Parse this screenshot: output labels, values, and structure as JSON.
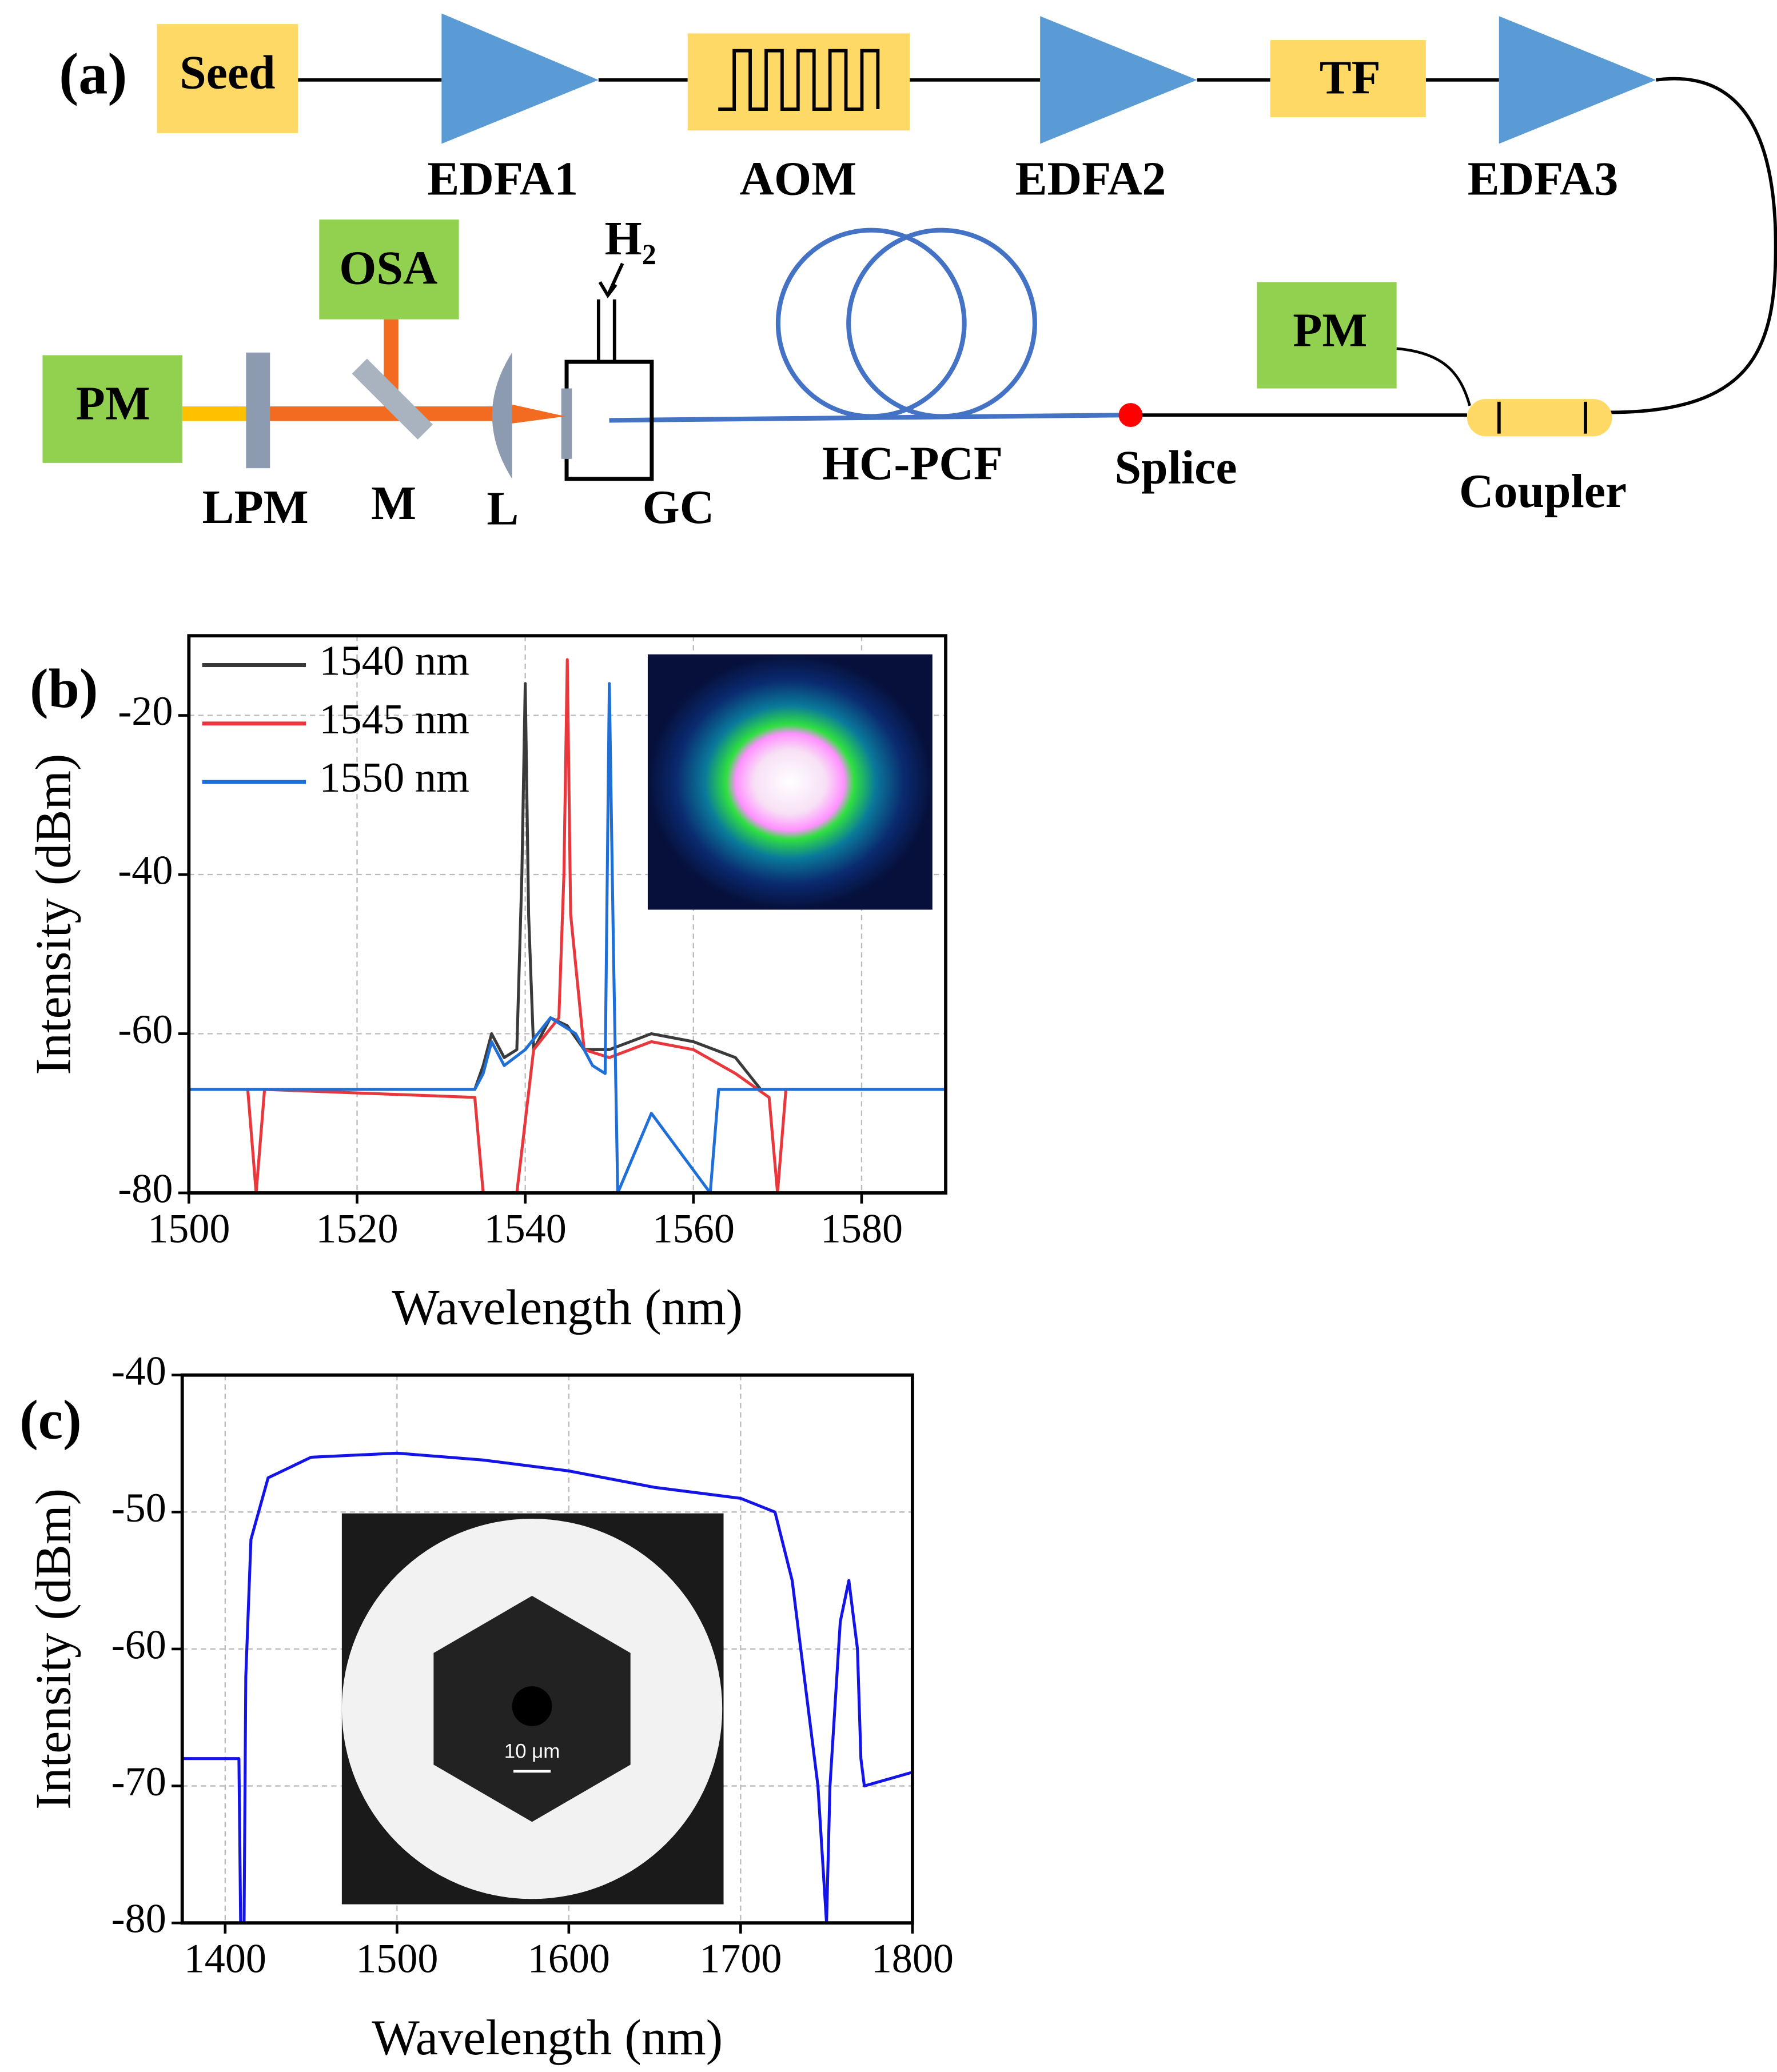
{
  "diagram": {
    "panel_label": "(a)",
    "components": {
      "seed": "Seed",
      "edfa1": "EDFA1",
      "aom": "AOM",
      "edfa2": "EDFA2",
      "tf": "TF",
      "edfa3": "EDFA3",
      "osa": "OSA",
      "gas": "H₂",
      "pm_left": "PM",
      "lpm": "LPM",
      "mirror": "M",
      "lens": "L",
      "gc": "GC",
      "fiber": "HC-PCF",
      "splice": "Splice",
      "pm_right": "PM",
      "coupler": "Coupler"
    }
  },
  "chart_data": [
    {
      "type": "line",
      "panel_label": "(b)",
      "xlabel": "Wavelength (nm)",
      "ylabel": "Intensity (dBm)",
      "xlim": [
        1500,
        1590
      ],
      "ylim": [
        -80,
        -10
      ],
      "xticks": [
        1500,
        1520,
        1540,
        1560,
        1580
      ],
      "yticks": [
        -80,
        -60,
        -40,
        -20
      ],
      "grid": true,
      "legend": "upper left",
      "series": [
        {
          "name": "1540 nm",
          "color": "#3a3a3a",
          "x": [
            1500,
            1534,
            1535,
            1536,
            1537.5,
            1539,
            1539.6,
            1540,
            1540.4,
            1541,
            1543,
            1545,
            1547,
            1550,
            1555,
            1560,
            1565,
            1568,
            1590
          ],
          "values": [
            -67,
            -67,
            -64,
            -60,
            -63,
            -62,
            -40,
            -16,
            -45,
            -62,
            -58,
            -59,
            -62,
            -62,
            -60,
            -61,
            -63,
            -67,
            -67
          ]
        },
        {
          "name": "1545 nm",
          "color": "#e8383d",
          "x": [
            1500,
            1507,
            1508,
            1509,
            1534,
            1535,
            1539,
            1541,
            1544,
            1544.6,
            1545,
            1545.4,
            1547,
            1550,
            1555,
            1560,
            1565,
            1569,
            1570,
            1571,
            1590
          ],
          "values": [
            -67,
            -67,
            -80,
            -67,
            -68,
            -80,
            -80,
            -62,
            -58,
            -40,
            -13,
            -45,
            -62,
            -63,
            -61,
            -62,
            -65,
            -68,
            -80,
            -67,
            -67
          ]
        },
        {
          "name": "1550 nm",
          "color": "#1f6fd6",
          "x": [
            1500,
            1534,
            1535,
            1536,
            1537.5,
            1540,
            1543,
            1546,
            1548,
            1549.5,
            1550,
            1550.5,
            1551,
            1555,
            1562,
            1563,
            1590
          ],
          "values": [
            -67,
            -67,
            -65,
            -61,
            -64,
            -62,
            -58,
            -60,
            -64,
            -65,
            -16,
            -50,
            -80,
            -70,
            -80,
            -67,
            -67
          ]
        }
      ]
    },
    {
      "type": "line",
      "panel_label": "(c)",
      "xlabel": "Wavelength (nm)",
      "ylabel": "Intensity (dBm)",
      "inset_label": "10 μm",
      "xlim": [
        1375,
        1800
      ],
      "ylim": [
        -80,
        -40
      ],
      "xticks": [
        1400,
        1500,
        1600,
        1700,
        1800
      ],
      "yticks": [
        -80,
        -70,
        -60,
        -50,
        -40
      ],
      "grid": true,
      "series": [
        {
          "color": "#1414e6",
          "x": [
            1375,
            1408,
            1409,
            1411,
            1412,
            1415,
            1425,
            1450,
            1500,
            1550,
            1600,
            1650,
            1700,
            1720,
            1730,
            1740,
            1745,
            1750,
            1752,
            1758,
            1763,
            1768,
            1770,
            1772,
            1800
          ],
          "values": [
            -68,
            -68,
            -80,
            -80,
            -62,
            -52,
            -47.5,
            -46,
            -45.7,
            -46.2,
            -47,
            -48.2,
            -49,
            -50,
            -55,
            -65,
            -70,
            -80,
            -70,
            -58,
            -55,
            -60,
            -68,
            -70,
            -69
          ]
        }
      ]
    }
  ]
}
